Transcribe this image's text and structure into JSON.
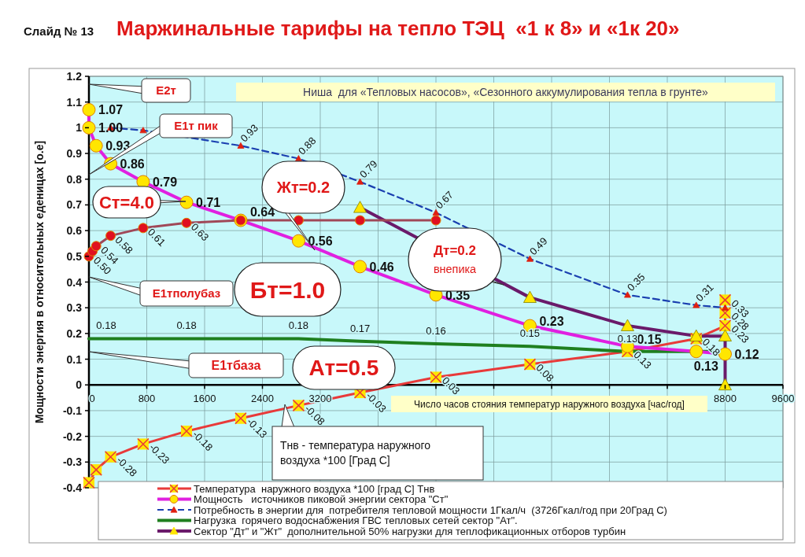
{
  "chart_data": {
    "type": "line",
    "title": "Маржинальные тарифы на тепло ТЭЦ  «1 к 8» и «1к 20»",
    "subtitle": "Слайд № 13",
    "xlabel": "Число часов стояния температур наружного воздуха [час/год]",
    "ylabel": "Мощности энергия в относительных еденицах [о.е]",
    "xlim": [
      0,
      9600
    ],
    "xticks": [
      0,
      800,
      1600,
      2400,
      3200,
      {
        "value": 4000,
        "label": null
      },
      {
        "value": 4800,
        "label": null
      },
      {
        "value": 5600,
        "label": null
      },
      {
        "value": 6400,
        "label": null
      },
      {
        "value": 7200,
        "label": null
      },
      {
        "value": 8000,
        "label": null
      },
      8800,
      9600
    ],
    "ylim": [
      -0.4,
      1.2
    ],
    "yticks": [
      -0.4,
      -0.3,
      -0.2,
      -0.1,
      0,
      0.1,
      0.2,
      0.3,
      0.4,
      0.5,
      0.6,
      0.7,
      0.8,
      0.9,
      1,
      1.1,
      1.2
    ],
    "grid": true,
    "legend": "bottom",
    "annotations": [
      "Е2т",
      "Е1т пик",
      "Ст=4.0",
      "Жт=0.2",
      "Дт=0.2\nвнепика",
      "Е1тполубаз",
      "Бт=1.0",
      "Е1тбаза",
      "Ат=0.5",
      "Ниша  для «Тепловых насосов», «Сезонного аккумулирования тепла в грунте»",
      "Тнв - температура наружного\nвоздуха *100 [Град С]"
    ],
    "series": [
      {
        "name": "Температура  наружного воздуха *100 [град С] Тнв",
        "color": "#e83a3a",
        "marker": "cross",
        "line_style": "solid",
        "x": [
          0,
          100,
          300,
          750,
          1350,
          2100,
          2900,
          3750,
          4800,
          6100,
          7450,
          8400,
          8800,
          8800,
          8800
        ],
        "values": [
          -0.38,
          -0.33,
          -0.28,
          -0.23,
          -0.18,
          -0.13,
          -0.08,
          -0.03,
          0.03,
          0.08,
          0.13,
          0.18,
          0.23,
          0.28,
          0.33
        ],
        "value_labels": [
          null,
          null,
          "-0.28",
          "-0.23",
          "-0.18",
          "-0.13",
          "-0.08",
          "-0.03",
          "0.03",
          "0.08",
          "0.13",
          "0.18",
          "0.23",
          "0.28",
          "0.33"
        ]
      },
      {
        "name": "Мощность   источников пиковой энергии сектора \"Ст\"",
        "color": "#e020e0",
        "marker": "circle",
        "line_style": "solid",
        "x": [
          0,
          0,
          100,
          300,
          750,
          1350,
          2100,
          2900,
          3750,
          4800,
          6100,
          7450,
          8400,
          8800
        ],
        "values": [
          1.07,
          1.0,
          0.93,
          0.86,
          0.79,
          0.71,
          0.64,
          0.56,
          0.46,
          0.35,
          0.23,
          0.15,
          0.13,
          0.12
        ],
        "value_labels": [
          "1.07",
          "1.00",
          "0.93",
          "0.86",
          "0.79",
          "0.71",
          "0.64",
          "0.56",
          "0.46",
          "0.35",
          "0.23",
          "0.15",
          "0.13",
          "0.12"
        ]
      },
      {
        "name": "Потребность в энергии для  потребителя тепловой мощности 1Гкал/ч  (3726Гкал/год при 20Град С)",
        "color": "#1a3fb0",
        "marker": "triangle",
        "line_style": "dashed",
        "x": [
          300,
          750,
          2100,
          2900,
          3750,
          4800,
          6100,
          7450,
          8400,
          8800
        ],
        "values": [
          1.0,
          0.99,
          0.93,
          0.88,
          0.79,
          0.67,
          0.49,
          0.35,
          0.31,
          0.3
        ],
        "value_labels": [
          null,
          null,
          "0.93",
          "0.88",
          "0.79",
          "0.67",
          "0.49",
          "0.35",
          "0.31",
          null
        ]
      },
      {
        "name": "Нагрузка  горячего водоснабжения ГВС тепловых сетей сектор \"Ат\".",
        "color": "#1f7f1f",
        "marker": "none",
        "line_style": "solid",
        "x": [
          0,
          1350,
          2900,
          3750,
          4800,
          6100,
          7450,
          8800
        ],
        "values": [
          0.18,
          0.18,
          0.18,
          0.17,
          0.16,
          0.15,
          0.13,
          0.13
        ],
        "value_labels": [
          "0.18",
          "0.18",
          "0.18",
          "0.17",
          "0.16",
          "0.15",
          "0.13",
          null
        ]
      },
      {
        "name": "Сектор \"Дт\" и \"Жт\"  дополнительной 50% нагрузки для теплофикационных отборов турбин",
        "color": "#6a1a6a",
        "marker": "triangle",
        "line_style": "solid",
        "x": [
          3750,
          6100,
          7450,
          8400,
          8800,
          8800
        ],
        "values": [
          0.69,
          0.34,
          0.23,
          0.19,
          0.19,
          0
        ]
      },
      {
        "color": "#a04858",
        "marker": "circle",
        "line_style": "solid",
        "x": [
          0,
          50,
          100,
          300,
          750,
          1350,
          2100,
          2900,
          3750,
          4800
        ],
        "values": [
          0.5,
          0.52,
          0.54,
          0.58,
          0.61,
          0.63,
          0.64,
          0.64,
          0.64,
          0.64
        ],
        "value_labels": [
          "0.50",
          null,
          "0.54",
          "0.58",
          "0.61",
          "0.63",
          null,
          null,
          null,
          null
        ]
      }
    ]
  }
}
